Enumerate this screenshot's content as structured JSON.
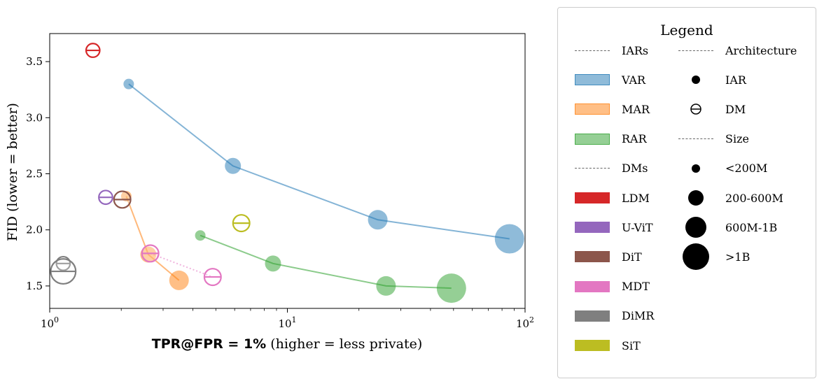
{
  "chart_data": {
    "type": "scatter",
    "title": "",
    "xlabel_bold": "TPR@FPR = 1%",
    "xlabel_rest": " (higher = less private)",
    "ylabel": "FID (lower = better)",
    "xscale": "log",
    "xlim": [
      1,
      100
    ],
    "ylim": [
      1.3,
      3.75
    ],
    "x_ticks": [
      {
        "value": 1,
        "base": "10",
        "exp": "0"
      },
      {
        "value": 10,
        "base": "10",
        "exp": "1"
      },
      {
        "value": 100,
        "base": "10",
        "exp": "2"
      }
    ],
    "y_ticks": [
      {
        "value": 1.5,
        "label": "1.5"
      },
      {
        "value": 2.0,
        "label": "2.0"
      },
      {
        "value": 2.5,
        "label": "2.5"
      },
      {
        "value": 3.0,
        "label": "3.0"
      },
      {
        "value": 3.5,
        "label": "3.5"
      }
    ],
    "series": [
      {
        "name": "VAR",
        "family": "IAR",
        "color": "#1f77b4",
        "line": "solid",
        "points": [
          {
            "x": 2.15,
            "y": 3.3,
            "size": "<200M"
          },
          {
            "x": 5.9,
            "y": 2.57,
            "size": "200-600M"
          },
          {
            "x": 24.0,
            "y": 2.09,
            "size": "600M-1B"
          },
          {
            "x": 86.0,
            "y": 1.92,
            "size": ">1B"
          }
        ]
      },
      {
        "name": "MAR",
        "family": "IAR",
        "color": "#ff7f0e",
        "line": "solid",
        "points": [
          {
            "x": 2.1,
            "y": 2.3,
            "size": "<200M"
          },
          {
            "x": 2.6,
            "y": 1.78,
            "size": "200-600M"
          },
          {
            "x": 3.5,
            "y": 1.55,
            "size": "600M-1B"
          }
        ]
      },
      {
        "name": "RAR",
        "family": "IAR",
        "color": "#2ca02c",
        "line": "solid",
        "points": [
          {
            "x": 4.3,
            "y": 1.95,
            "size": "<200M"
          },
          {
            "x": 8.7,
            "y": 1.7,
            "size": "200-600M"
          },
          {
            "x": 26.0,
            "y": 1.5,
            "size": "600M-1B"
          },
          {
            "x": 49.0,
            "y": 1.48,
            "size": ">1B"
          }
        ]
      },
      {
        "name": "LDM",
        "family": "DM",
        "color": "#d62728",
        "line": "none",
        "points": [
          {
            "x": 1.52,
            "y": 3.6,
            "size": "200-600M"
          }
        ]
      },
      {
        "name": "U-ViT",
        "family": "DM",
        "color": "#9467bd",
        "line": "none",
        "points": [
          {
            "x": 1.72,
            "y": 2.29,
            "size": "200-600M"
          }
        ]
      },
      {
        "name": "DiT",
        "family": "DM",
        "color": "#8c564b",
        "line": "none",
        "points": [
          {
            "x": 2.02,
            "y": 2.27,
            "size": "600M-1B"
          }
        ]
      },
      {
        "name": "MDT",
        "family": "DM",
        "color": "#e377c2",
        "line": "dotted",
        "points": [
          {
            "x": 2.65,
            "y": 1.79,
            "size": "600M-1B"
          },
          {
            "x": 4.85,
            "y": 1.58,
            "size": "600M-1B"
          }
        ]
      },
      {
        "name": "DiMR",
        "family": "DM",
        "color": "#7f7f7f",
        "line": "none",
        "points": [
          {
            "x": 1.14,
            "y": 1.7,
            "size": "200-600M"
          },
          {
            "x": 1.14,
            "y": 1.63,
            "size": ">1B"
          }
        ]
      },
      {
        "name": "SiT",
        "family": "DM",
        "color": "#bcbd22",
        "line": "none",
        "points": [
          {
            "x": 6.4,
            "y": 2.06,
            "size": "600M-1B"
          }
        ]
      }
    ]
  },
  "legend": {
    "title": "Legend",
    "col1": [
      {
        "kind": "header",
        "label": "IARs"
      },
      {
        "kind": "patch",
        "label": "VAR",
        "color": "#1f77b4"
      },
      {
        "kind": "patch",
        "label": "MAR",
        "color": "#ff7f0e"
      },
      {
        "kind": "patch",
        "label": "RAR",
        "color": "#2ca02c"
      },
      {
        "kind": "header",
        "label": "DMs"
      },
      {
        "kind": "patch",
        "label": "LDM",
        "color": "#d62728"
      },
      {
        "kind": "patch",
        "label": "U-ViT",
        "color": "#9467bd"
      },
      {
        "kind": "patch",
        "label": "DiT",
        "color": "#8c564b"
      },
      {
        "kind": "patch",
        "label": "MDT",
        "color": "#e377c2"
      },
      {
        "kind": "patch",
        "label": "DiMR",
        "color": "#7f7f7f"
      },
      {
        "kind": "patch",
        "label": "SiT",
        "color": "#bcbd22"
      }
    ],
    "col2": [
      {
        "kind": "header",
        "label": "Architecture"
      },
      {
        "kind": "marker",
        "label": "IAR",
        "marker": "filled-circle",
        "size": "<200M"
      },
      {
        "kind": "marker",
        "label": "DM",
        "marker": "theta-circle",
        "size": "<200M"
      },
      {
        "kind": "header",
        "label": "Size"
      },
      {
        "kind": "marker",
        "label": "<200M",
        "marker": "filled-circle",
        "size": "<200M"
      },
      {
        "kind": "marker",
        "label": "200-600M",
        "marker": "filled-circle",
        "size": "200-600M"
      },
      {
        "kind": "marker",
        "label": "600M-1B",
        "marker": "filled-circle",
        "size": "600M-1B"
      },
      {
        "kind": "marker",
        "label": ">1B",
        "marker": "filled-circle",
        "size": ">1B"
      }
    ]
  }
}
